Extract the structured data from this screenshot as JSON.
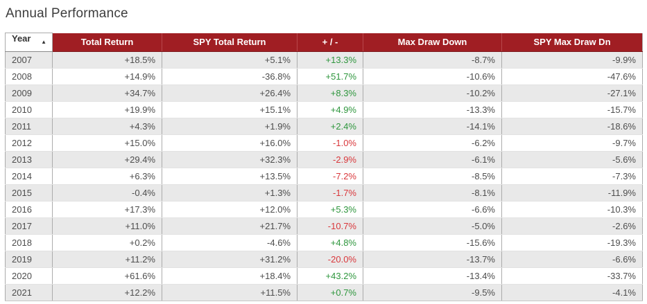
{
  "page": {
    "title": "Annual Performance"
  },
  "colors": {
    "header_bg": "#a01e23",
    "header_text": "#ffffff",
    "positive": "#2e963d",
    "negative": "#d9373b",
    "row_alt_bg": "#e9e9e9",
    "row_bg": "#ffffff",
    "cell_text": "#4d4d4d"
  },
  "icons": {
    "sort_asc": "▲"
  },
  "table": {
    "columns": [
      {
        "key": "year",
        "label": "Year",
        "sorted": "ascending"
      },
      {
        "key": "total-return",
        "label": "Total Return"
      },
      {
        "key": "spy-total-return",
        "label": "SPY Total Return"
      },
      {
        "key": "plus-minus",
        "label": "+ / -"
      },
      {
        "key": "max-draw-down",
        "label": "Max Draw Down"
      },
      {
        "key": "spy-max-draw-dn",
        "label": "SPY Max Draw Dn"
      }
    ],
    "rows": [
      [
        "2007",
        "+18.5%",
        "+5.1%",
        "+13.3%",
        "-8.7%",
        "-9.9%"
      ],
      [
        "2008",
        "+14.9%",
        "-36.8%",
        "+51.7%",
        "-10.6%",
        "-47.6%"
      ],
      [
        "2009",
        "+34.7%",
        "+26.4%",
        "+8.3%",
        "-10.2%",
        "-27.1%"
      ],
      [
        "2010",
        "+19.9%",
        "+15.1%",
        "+4.9%",
        "-13.3%",
        "-15.7%"
      ],
      [
        "2011",
        "+4.3%",
        "+1.9%",
        "+2.4%",
        "-14.1%",
        "-18.6%"
      ],
      [
        "2012",
        "+15.0%",
        "+16.0%",
        "-1.0%",
        "-6.2%",
        "-9.7%"
      ],
      [
        "2013",
        "+29.4%",
        "+32.3%",
        "-2.9%",
        "-6.1%",
        "-5.6%"
      ],
      [
        "2014",
        "+6.3%",
        "+13.5%",
        "-7.2%",
        "-8.5%",
        "-7.3%"
      ],
      [
        "2015",
        "-0.4%",
        "+1.3%",
        "-1.7%",
        "-8.1%",
        "-11.9%"
      ],
      [
        "2016",
        "+17.3%",
        "+12.0%",
        "+5.3%",
        "-6.6%",
        "-10.3%"
      ],
      [
        "2017",
        "+11.0%",
        "+21.7%",
        "-10.7%",
        "-5.0%",
        "-2.6%"
      ],
      [
        "2018",
        "+0.2%",
        "-4.6%",
        "+4.8%",
        "-15.6%",
        "-19.3%"
      ],
      [
        "2019",
        "+11.2%",
        "+31.2%",
        "-20.0%",
        "-13.7%",
        "-6.6%"
      ],
      [
        "2020",
        "+61.6%",
        "+18.4%",
        "+43.2%",
        "-13.4%",
        "-33.7%"
      ],
      [
        "2021",
        "+12.2%",
        "+11.5%",
        "+0.7%",
        "-9.5%",
        "-4.1%"
      ]
    ]
  }
}
